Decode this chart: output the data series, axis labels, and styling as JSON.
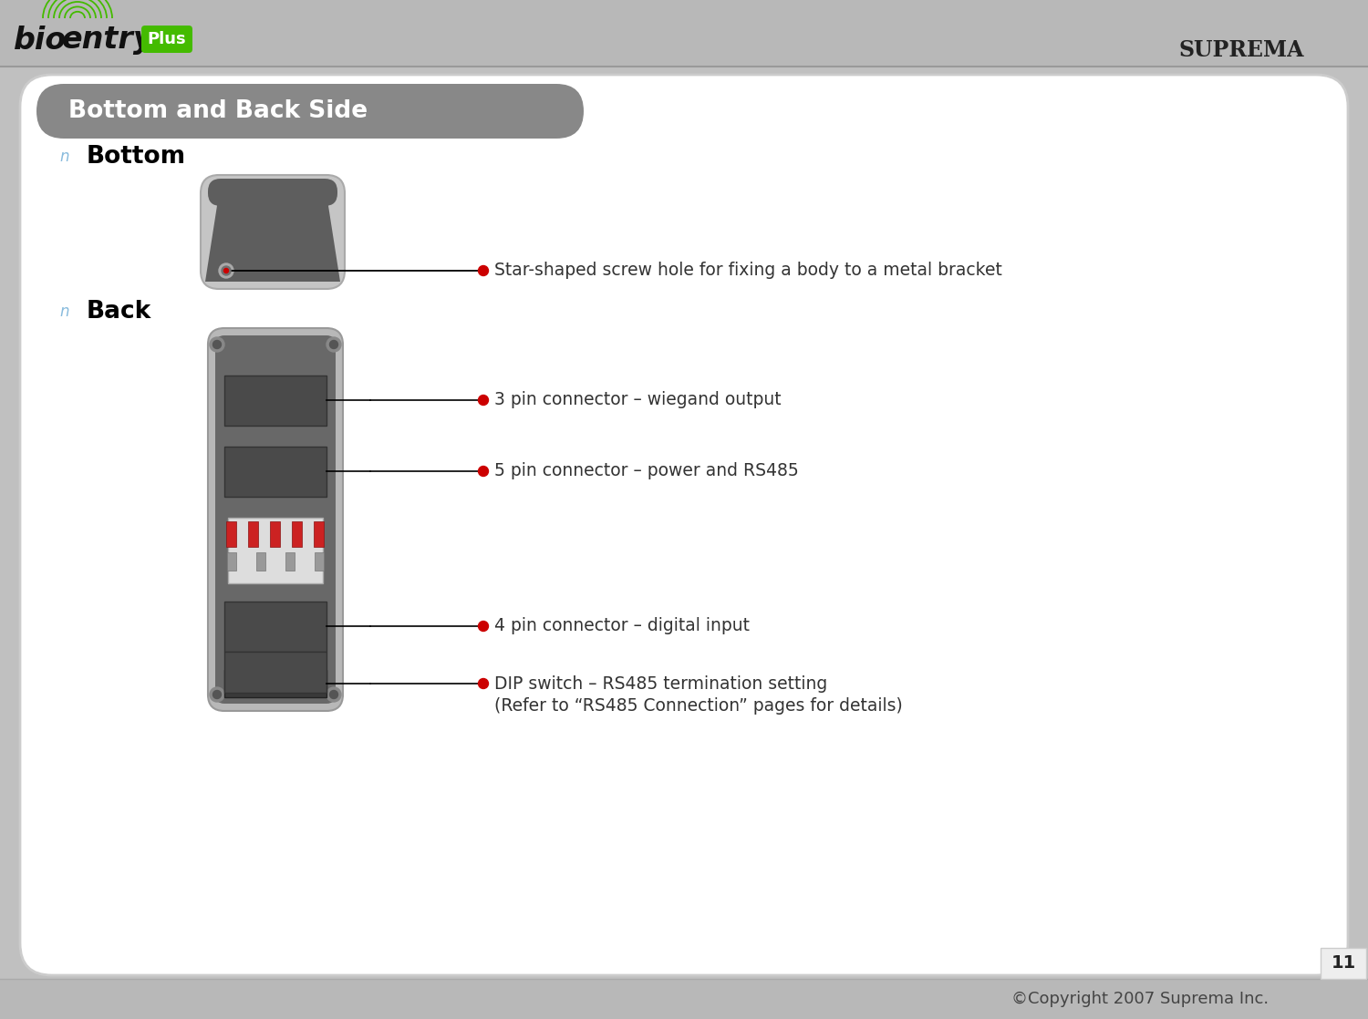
{
  "bg_color": "#c0c0c0",
  "main_bg": "#ffffff",
  "header_bar_color": "#b8b8b8",
  "banner_color": "#888888",
  "header_text": "Bottom and Back Side",
  "header_text_color": "#ffffff",
  "section_bottom_label": "Bottom",
  "section_back_label": "Back",
  "bullet_color": "#88bbdd",
  "line_color": "#000000",
  "dot_color": "#cc0000",
  "annotations": [
    "Star-shaped screw hole for fixing a body to a metal bracket",
    "3 pin connector – wiegand output",
    "5 pin connector – power and RS485",
    "4 pin connector – digital input",
    "DIP switch – RS485 termination setting\n            (Refer to “RS485 Connection” pages for details)"
  ],
  "footer_text": "©Copyright 2007 Suprema Inc.",
  "page_number": "11",
  "green_color": "#44bb00",
  "dark_text": "#333333",
  "suprema_text": "SUPREMA"
}
